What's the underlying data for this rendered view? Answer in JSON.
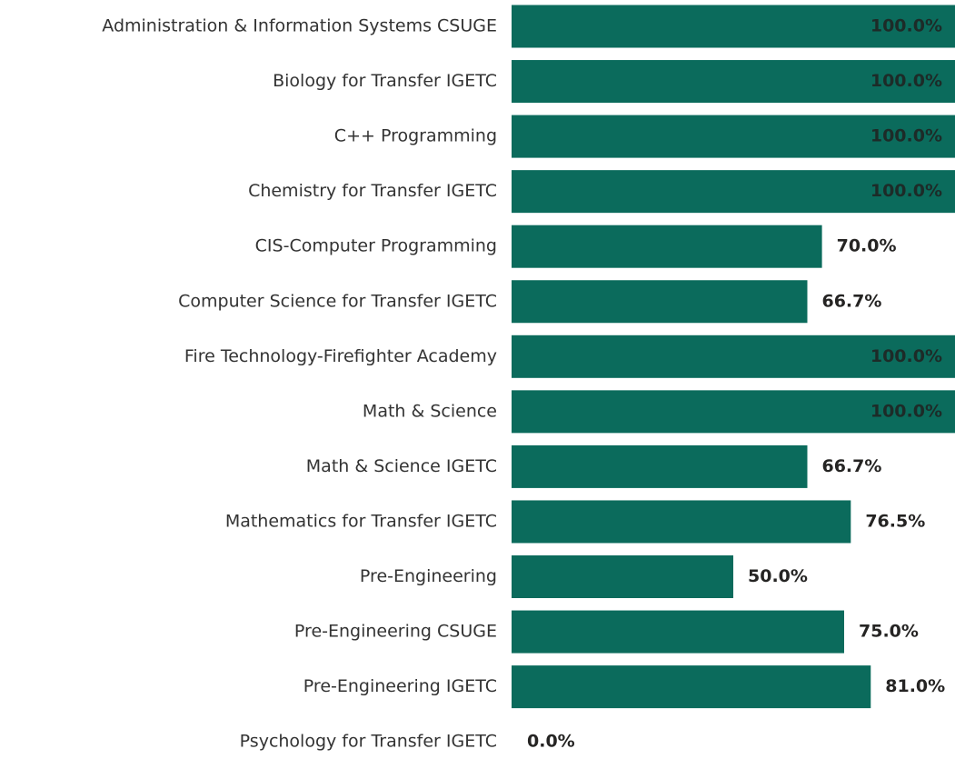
{
  "chart_data": {
    "type": "barh",
    "categories": [
      "Administration & Information Systems CSUGE",
      "Biology for Transfer IGETC",
      "C++ Programming",
      "Chemistry for Transfer IGETC",
      "CIS-Computer Programming",
      "Computer Science for Transfer IGETC",
      "Fire Technology-Firefighter Academy",
      "Math & Science",
      "Math & Science IGETC",
      "Mathematics for Transfer IGETC",
      "Pre-Engineering",
      "Pre-Engineering CSUGE",
      "Pre-Engineering IGETC",
      "Psychology for Transfer IGETC"
    ],
    "values": [
      100,
      100,
      100,
      100,
      70,
      66.7,
      100,
      100,
      66.7,
      76.5,
      50,
      75,
      81,
      0
    ],
    "value_labels": [
      "100.0%",
      "100.0%",
      "100.0%",
      "100.0%",
      "70.0%",
      "66.7%",
      "100.0%",
      "100.0%",
      "66.7%",
      "76.5%",
      "50.0%",
      "75.0%",
      "81.0%",
      "0.0%"
    ],
    "color": "#0b6b5c",
    "xlim": [
      0,
      100
    ]
  }
}
